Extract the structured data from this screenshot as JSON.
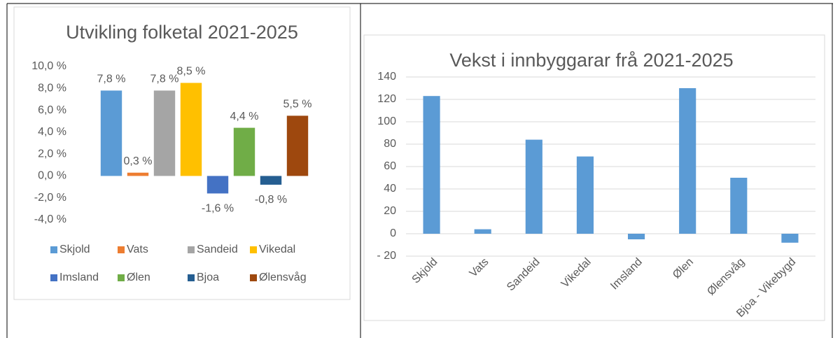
{
  "chart_data": [
    {
      "type": "bar",
      "title": "Utvikling folketal 2021-2025",
      "legend": "bottom",
      "ylim": [
        -4,
        10
      ],
      "yticks": [
        {
          "value": -4,
          "label": "-4,0 %"
        },
        {
          "value": -2,
          "label": "-2,0 %"
        },
        {
          "value": 0,
          "label": "0,0 %"
        },
        {
          "value": 2,
          "label": "2,0 %"
        },
        {
          "value": 4,
          "label": "4,0 %"
        },
        {
          "value": 6,
          "label": "6,0 %"
        },
        {
          "value": 8,
          "label": "8,0 %"
        },
        {
          "value": 10,
          "label": "10,0 %"
        }
      ],
      "series": [
        {
          "name": "Skjold",
          "color": "#5b9bd5",
          "values": [
            7.8
          ],
          "value_labels": [
            "7,8 %"
          ]
        },
        {
          "name": "Vats",
          "color": "#ed7d31",
          "values": [
            0.3
          ],
          "value_labels": [
            "0,3 %"
          ]
        },
        {
          "name": "Sandeid",
          "color": "#a5a5a5",
          "values": [
            7.8
          ],
          "value_labels": [
            "7,8 %"
          ]
        },
        {
          "name": "Vikedal",
          "color": "#ffc000",
          "values": [
            8.5
          ],
          "value_labels": [
            "8,5 %"
          ]
        },
        {
          "name": "Imsland",
          "color": "#4472c4",
          "values": [
            -1.6
          ],
          "value_labels": [
            "-1,6 %"
          ]
        },
        {
          "name": "Ølen",
          "color": "#70ad47",
          "values": [
            4.4
          ],
          "value_labels": [
            "4,4 %"
          ]
        },
        {
          "name": "Bjoa",
          "color": "#255e91",
          "values": [
            -0.8
          ],
          "value_labels": [
            "-0,8 %"
          ]
        },
        {
          "name": "Ølensvåg",
          "color": "#9e480e",
          "values": [
            5.5
          ],
          "value_labels": [
            "5,5 %"
          ]
        }
      ]
    },
    {
      "type": "bar",
      "title": "Vekst i innbyggarar frå 2021-2025",
      "grid": true,
      "color": "#5b9bd5",
      "categories": [
        "Skjold",
        "Vats",
        "Sandeid",
        "Vikedal",
        "Imsland",
        "Ølen",
        "Ølensvåg",
        "Bjoa - Vikebygd"
      ],
      "values": [
        123,
        4,
        84,
        69,
        -5,
        130,
        50,
        -8
      ],
      "ylim": [
        -20,
        140
      ],
      "yticks": [
        {
          "value": -20,
          "label": "-   20"
        },
        0,
        20,
        40,
        60,
        80,
        100,
        120,
        140
      ]
    }
  ]
}
